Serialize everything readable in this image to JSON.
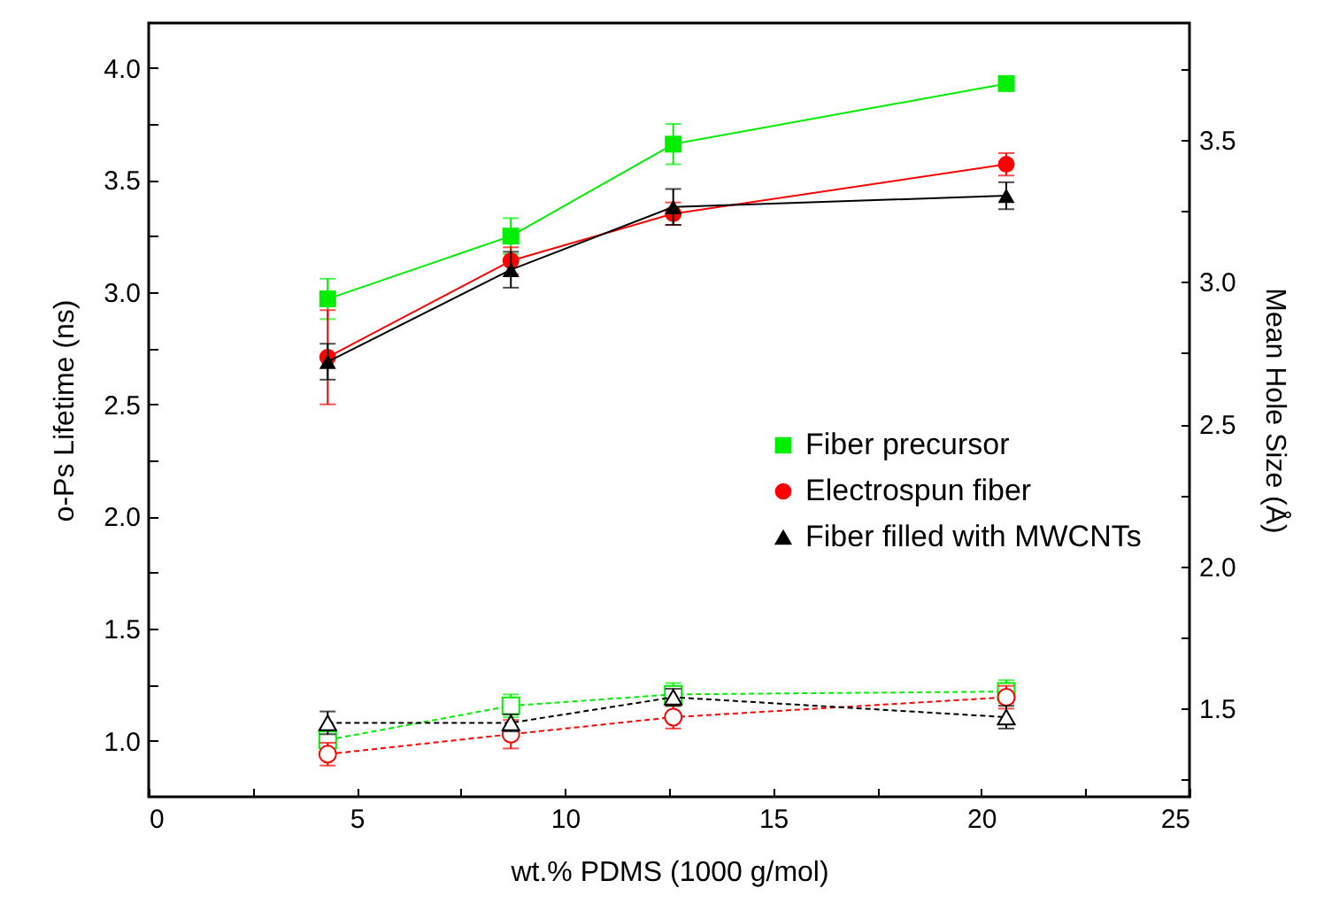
{
  "chart_data": {
    "type": "line",
    "xlabel": "wt.% PDMS (1000 g/mol)",
    "ylabel": "o-Ps Lifetime (ns)",
    "y2label": "Mean Hole Size (Å)",
    "x": [
      4.3,
      8.7,
      12.6,
      20.6
    ],
    "xlim": [
      0,
      25
    ],
    "xticks": [
      0,
      {
        "value": 2.5,
        "label": null
      },
      5,
      {
        "value": 7.5,
        "label": null
      },
      10,
      {
        "value": 12.5,
        "label": null
      },
      15,
      {
        "value": 17.5,
        "label": null
      },
      20,
      {
        "value": 22.5,
        "label": null
      },
      25
    ],
    "ylim": [
      0.75,
      4.2
    ],
    "yticks": [
      {
        "value": 1,
        "label": "1.0"
      },
      {
        "value": 1.25,
        "label": null
      },
      {
        "value": 1.5,
        "label": "1.5"
      },
      {
        "value": 1.75,
        "label": null
      },
      {
        "value": 2,
        "label": "2.0"
      },
      {
        "value": 2.25,
        "label": null
      },
      {
        "value": 2.5,
        "label": "2.5"
      },
      {
        "value": 2.75,
        "label": null
      },
      {
        "value": 3,
        "label": "3.0"
      },
      {
        "value": 3.25,
        "label": null
      },
      {
        "value": 3.5,
        "label": "3.5"
      },
      {
        "value": 3.75,
        "label": null
      },
      {
        "value": 4,
        "label": "4.0"
      }
    ],
    "y2lim": [
      1.19,
      3.91
    ],
    "y2ticks": [
      {
        "value": 1.25,
        "label": null
      },
      {
        "value": 1.5,
        "label": "1.5"
      },
      {
        "value": 1.75,
        "label": null
      },
      {
        "value": 2,
        "label": "2.0"
      },
      {
        "value": 2.25,
        "label": null
      },
      {
        "value": 2.5,
        "label": "2.5"
      },
      {
        "value": 2.75,
        "label": null
      },
      {
        "value": 3,
        "label": "3.0"
      },
      {
        "value": 3.25,
        "label": null
      },
      {
        "value": 3.5,
        "label": "3.5"
      },
      {
        "value": 3.75,
        "label": null
      }
    ],
    "legend": "right",
    "grid": false,
    "series": [
      {
        "name": "Fiber precursor",
        "color": "#00ee00",
        "marker": "square",
        "line_style": "solid",
        "values": [
          2.97,
          3.25,
          3.66,
          3.93
        ],
        "errors": [
          0.09,
          0.08,
          0.09,
          0.03
        ]
      },
      {
        "name": "Electrospun fiber",
        "color": "#ff0000",
        "marker": "circle",
        "line_style": "solid",
        "values": [
          2.71,
          3.14,
          3.35,
          3.57
        ],
        "errors": [
          0.21,
          0.06,
          0.05,
          0.05
        ]
      },
      {
        "name": "Fiber filled with MWCNTs",
        "color": "#000000",
        "marker": "triangle",
        "line_style": "solid",
        "values": [
          2.69,
          3.1,
          3.38,
          3.43
        ],
        "errors": [
          0.08,
          0.08,
          0.08,
          0.06
        ]
      },
      {
        "color": "#00ee00",
        "marker": "square",
        "line_style": "dashed",
        "axis": "y2",
        "values": [
          1.39,
          1.51,
          1.55,
          1.56
        ],
        "errors": [
          0.04,
          0.04,
          0.04,
          0.04
        ]
      },
      {
        "color": "#ff0000",
        "marker": "circle",
        "line_style": "dashed",
        "axis": "y2",
        "values": [
          1.34,
          1.41,
          1.47,
          1.54
        ],
        "errors": [
          0.04,
          0.05,
          0.04,
          0.04
        ]
      },
      {
        "color": "#000000",
        "marker": "triangle",
        "line_style": "dashed",
        "axis": "y2",
        "values": [
          1.45,
          1.45,
          1.54,
          1.47
        ],
        "errors": [
          0.04,
          0.03,
          0.03,
          0.04
        ]
      }
    ]
  }
}
